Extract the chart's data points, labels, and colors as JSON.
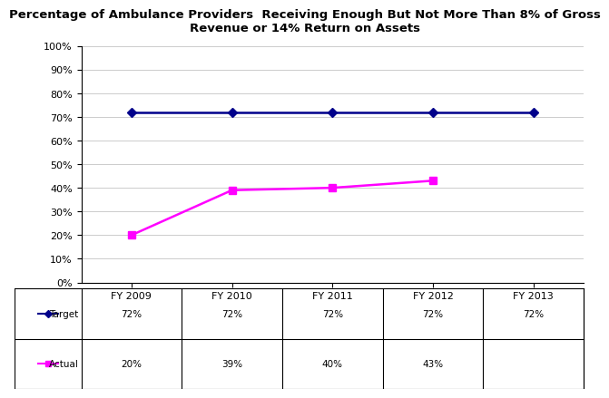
{
  "title_line1": "Percentage of Ambulance Providers  Receiving Enough But Not More Than 8% of Gross",
  "title_line2": "Revenue or 14% Return on Assets",
  "x_labels": [
    "FY 2009",
    "FY 2010",
    "FY 2011",
    "FY 2012",
    "FY 2013"
  ],
  "target_values": [
    72,
    72,
    72,
    72,
    72
  ],
  "actual_values": [
    20,
    39,
    40,
    43,
    null
  ],
  "target_color": "#00008B",
  "actual_color": "#FF00FF",
  "ylim": [
    0,
    100
  ],
  "ytick_values": [
    0,
    10,
    20,
    30,
    40,
    50,
    60,
    70,
    80,
    90,
    100
  ],
  "ytick_labels": [
    "0%",
    "10%",
    "20%",
    "30%",
    "40%",
    "50%",
    "60%",
    "70%",
    "80%",
    "90%",
    "100%"
  ],
  "table_row_labels": [
    "Target",
    "Actual"
  ],
  "table_target_row": [
    "72%",
    "72%",
    "72%",
    "72%",
    "72%"
  ],
  "table_actual_row": [
    "20%",
    "39%",
    "40%",
    "43%",
    ""
  ],
  "target_label": "Target",
  "actual_label": "Actual",
  "background_color": "#ffffff",
  "grid_color": "#cccccc",
  "title_fontsize": 9.5,
  "tick_fontsize": 8,
  "table_fontsize": 7.5
}
